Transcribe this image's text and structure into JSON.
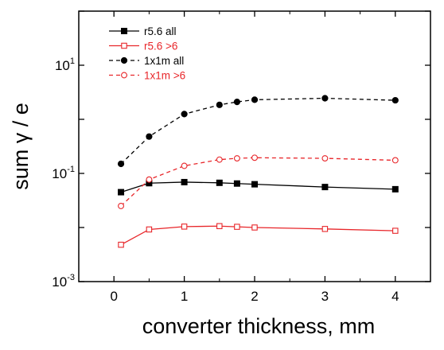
{
  "chart_data": {
    "type": "line",
    "xlabel": "converter thickness, mm",
    "ylabel": "sum γ / e",
    "xlim": [
      -0.5,
      4.5
    ],
    "ylim": [
      0.001,
      100
    ],
    "y_scale": "log",
    "grid": false,
    "legend_position": "top-left",
    "x_ticks": [
      0,
      1,
      2,
      3,
      4
    ],
    "y_major_ticks": [
      {
        "value": 0.001,
        "base": "10",
        "exp": "-3"
      },
      {
        "value": 0.1,
        "base": "10",
        "exp": "-1"
      },
      {
        "value": 10,
        "base": "10",
        "exp": "1"
      }
    ],
    "series": [
      {
        "name": "r5.6 all",
        "color": "#000000",
        "dash": "solid",
        "marker": "filled-square",
        "x": [
          0.1,
          0.5,
          1.0,
          1.5,
          1.75,
          2.0,
          3.0,
          4.0
        ],
        "y": [
          0.045,
          0.066,
          0.069,
          0.067,
          0.065,
          0.063,
          0.056,
          0.051
        ]
      },
      {
        "name": "r5.6 >6",
        "color": "#e8262a",
        "dash": "solid",
        "marker": "open-square",
        "x": [
          0.1,
          0.5,
          1.0,
          1.5,
          1.75,
          2.0,
          3.0,
          4.0
        ],
        "y": [
          0.0048,
          0.0092,
          0.0104,
          0.0106,
          0.0103,
          0.01,
          0.0094,
          0.0087
        ]
      },
      {
        "name": "1x1m all",
        "color": "#000000",
        "dash": "dashed",
        "marker": "filled-circle",
        "x": [
          0.1,
          0.5,
          1.0,
          1.5,
          1.75,
          2.0,
          3.0,
          4.0
        ],
        "y": [
          0.15,
          0.48,
          1.25,
          1.85,
          2.1,
          2.3,
          2.45,
          2.25
        ]
      },
      {
        "name": "1x1m >6",
        "color": "#e8262a",
        "dash": "dashed",
        "marker": "open-circle",
        "x": [
          0.1,
          0.5,
          1.0,
          1.5,
          1.75,
          2.0,
          3.0,
          4.0
        ],
        "y": [
          0.025,
          0.077,
          0.138,
          0.18,
          0.19,
          0.195,
          0.19,
          0.175
        ]
      }
    ]
  }
}
